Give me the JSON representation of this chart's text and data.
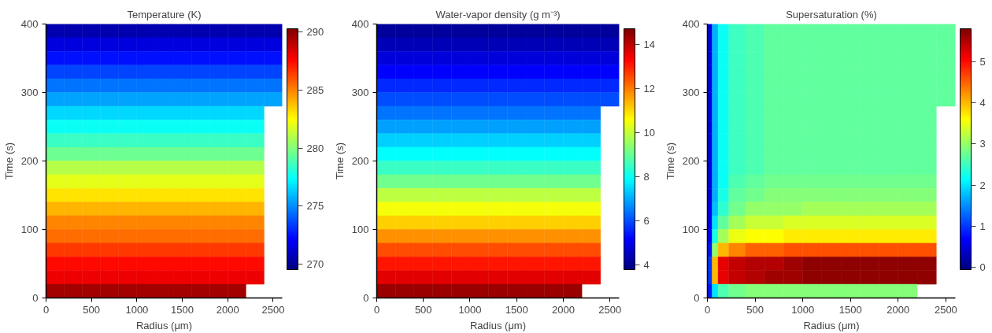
{
  "chart_data": [
    {
      "type": "heatmap",
      "title": "Temperature (K)",
      "xlabel": "Radius (μm)",
      "ylabel": "Time (s)",
      "xlim": [
        0,
        2600
      ],
      "xticks": [
        0,
        500,
        1000,
        1500,
        2000,
        2500
      ],
      "ylim": [
        0,
        400
      ],
      "yticks": [
        0,
        100,
        200,
        300,
        400
      ],
      "clim": [
        269.5,
        290.3
      ],
      "cticks": [
        270,
        275,
        280,
        285,
        290
      ],
      "grid": false,
      "x": [
        100,
        300,
        500,
        700,
        900,
        1100,
        1300,
        1500,
        1700,
        1900,
        2100,
        2300,
        2500
      ],
      "cells": [
        [
          270.5,
          270.5,
          270.5,
          270.5,
          270.5,
          270.5,
          270.5,
          270.5,
          270.5,
          270.5,
          270.5,
          270.5,
          270.5
        ],
        [
          271.5,
          271.5,
          271.5,
          271.5,
          271.5,
          271.5,
          271.5,
          271.5,
          271.5,
          271.5,
          271.5,
          271.5,
          271.5
        ],
        [
          272.5,
          272.5,
          272.5,
          272.5,
          272.5,
          272.5,
          272.5,
          272.5,
          272.5,
          272.5,
          272.5,
          272.5,
          272.5
        ],
        [
          273.5,
          273.5,
          273.5,
          273.5,
          273.5,
          273.5,
          273.5,
          273.5,
          273.5,
          273.5,
          273.5,
          273.5,
          273.5
        ],
        [
          274.5,
          274.5,
          274.5,
          274.5,
          274.5,
          274.5,
          274.5,
          274.5,
          274.5,
          274.5,
          274.5,
          274.5,
          274.5
        ],
        [
          275.5,
          275.5,
          275.5,
          275.5,
          275.5,
          275.5,
          275.5,
          275.5,
          275.5,
          275.5,
          275.5,
          275.5,
          275.5
        ],
        [
          276.5,
          276.5,
          276.5,
          276.5,
          276.5,
          276.5,
          276.5,
          276.5,
          276.5,
          276.5,
          276.5,
          276.5,
          null
        ],
        [
          277.5,
          277.5,
          277.5,
          277.5,
          277.5,
          277.5,
          277.5,
          277.5,
          277.5,
          277.5,
          277.5,
          277.5,
          null
        ],
        [
          278.5,
          278.5,
          278.5,
          278.5,
          278.5,
          278.5,
          278.5,
          278.5,
          278.5,
          278.5,
          278.5,
          278.5,
          null
        ],
        [
          279.5,
          279.5,
          279.5,
          279.5,
          279.5,
          279.5,
          279.5,
          279.5,
          279.5,
          279.5,
          279.5,
          279.5,
          null
        ],
        [
          281,
          281,
          281,
          281,
          281,
          281,
          281,
          281,
          281,
          281,
          281,
          281,
          null
        ],
        [
          282,
          282,
          282,
          282,
          282,
          282,
          282,
          282,
          282,
          282,
          282,
          282,
          null
        ],
        [
          283,
          283,
          283,
          283,
          283,
          283,
          283,
          283,
          283,
          283,
          283,
          283,
          null
        ],
        [
          284,
          284,
          284,
          284,
          284,
          284,
          284,
          284,
          284,
          284,
          284,
          284,
          null
        ],
        [
          285,
          285,
          285,
          285,
          285,
          285,
          285,
          285,
          285,
          285,
          285,
          285,
          null
        ],
        [
          285.5,
          285.5,
          285.5,
          285.5,
          285.5,
          285.5,
          285.5,
          285.5,
          285.5,
          285.5,
          285.5,
          285.5,
          null
        ],
        [
          286.5,
          286.5,
          286.5,
          286.5,
          286.5,
          286.5,
          286.5,
          286.5,
          286.5,
          286.5,
          286.5,
          286.5,
          null
        ],
        [
          287.5,
          287.5,
          287.5,
          287.5,
          287.5,
          287.5,
          287.5,
          287.5,
          287.5,
          287.5,
          287.5,
          287.5,
          null
        ],
        [
          288,
          288,
          288,
          288,
          288,
          288,
          288,
          288,
          288,
          288,
          288,
          288,
          null
        ],
        [
          289.5,
          289.5,
          289.5,
          289.5,
          289.5,
          289.5,
          289.5,
          289.5,
          289.5,
          289.5,
          289.5,
          null,
          null
        ]
      ]
    },
    {
      "type": "heatmap",
      "title": "Water-vapor density (g m⁻³)",
      "xlabel": "Radius (μm)",
      "ylabel": "Time (s)",
      "xlim": [
        0,
        2600
      ],
      "xticks": [
        0,
        500,
        1000,
        1500,
        2000,
        2500
      ],
      "ylim": [
        0,
        400
      ],
      "yticks": [
        0,
        100,
        200,
        300,
        400
      ],
      "clim": [
        3.8,
        14.7
      ],
      "cticks": [
        4,
        6,
        8,
        10,
        12,
        14
      ],
      "grid": false,
      "x": [
        100,
        300,
        500,
        700,
        900,
        1100,
        1300,
        1500,
        1700,
        1900,
        2100,
        2300,
        2500
      ],
      "cells": [
        [
          4.1,
          4.1,
          4.1,
          4.1,
          4.1,
          4.1,
          4.1,
          4.1,
          4.1,
          4.1,
          4.1,
          4.1,
          4.1
        ],
        [
          4.4,
          4.4,
          4.4,
          4.4,
          4.4,
          4.4,
          4.4,
          4.4,
          4.4,
          4.4,
          4.4,
          4.4,
          4.4
        ],
        [
          4.8,
          4.8,
          4.8,
          4.8,
          4.8,
          4.8,
          4.8,
          4.8,
          4.8,
          4.8,
          4.8,
          4.8,
          4.8
        ],
        [
          5.2,
          5.2,
          5.2,
          5.2,
          5.2,
          5.2,
          5.2,
          5.2,
          5.2,
          5.2,
          5.2,
          5.2,
          5.2
        ],
        [
          5.6,
          5.6,
          5.6,
          5.6,
          5.6,
          5.6,
          5.6,
          5.6,
          5.6,
          5.6,
          5.6,
          5.6,
          5.6
        ],
        [
          6.0,
          6.0,
          6.0,
          6.0,
          6.0,
          6.0,
          6.0,
          6.0,
          6.0,
          6.0,
          6.0,
          6.0,
          6.0
        ],
        [
          6.4,
          6.4,
          6.4,
          6.4,
          6.4,
          6.4,
          6.4,
          6.4,
          6.4,
          6.4,
          6.4,
          6.4,
          null
        ],
        [
          6.9,
          6.9,
          6.9,
          6.9,
          6.9,
          6.9,
          6.9,
          6.9,
          6.9,
          6.9,
          6.9,
          6.9,
          null
        ],
        [
          7.4,
          7.4,
          7.4,
          7.4,
          7.4,
          7.4,
          7.4,
          7.4,
          7.4,
          7.4,
          7.4,
          7.4,
          null
        ],
        [
          7.9,
          7.9,
          7.9,
          7.9,
          7.9,
          7.9,
          7.9,
          7.9,
          7.9,
          7.9,
          7.9,
          7.9,
          null
        ],
        [
          8.5,
          8.5,
          8.5,
          8.5,
          8.5,
          8.5,
          8.5,
          8.5,
          8.5,
          8.5,
          8.5,
          8.5,
          null
        ],
        [
          9.1,
          9.1,
          9.1,
          9.1,
          9.1,
          9.1,
          9.1,
          9.1,
          9.1,
          9.1,
          9.1,
          9.1,
          null
        ],
        [
          9.9,
          9.9,
          9.9,
          9.9,
          9.9,
          9.9,
          9.9,
          9.9,
          9.9,
          9.9,
          9.9,
          9.9,
          null
        ],
        [
          10.5,
          10.5,
          10.5,
          10.5,
          10.5,
          10.5,
          10.5,
          10.5,
          10.5,
          10.5,
          10.5,
          10.5,
          null
        ],
        [
          11.1,
          11.1,
          11.1,
          11.1,
          11.1,
          11.1,
          11.1,
          11.1,
          11.1,
          11.1,
          11.1,
          11.1,
          null
        ],
        [
          11.8,
          11.8,
          11.8,
          11.8,
          11.8,
          11.8,
          11.8,
          11.8,
          11.8,
          11.8,
          11.8,
          11.8,
          null
        ],
        [
          12.5,
          12.5,
          12.5,
          12.5,
          12.5,
          12.5,
          12.5,
          12.5,
          12.5,
          12.5,
          12.5,
          12.5,
          null
        ],
        [
          13.1,
          13.1,
          13.1,
          13.1,
          13.1,
          13.1,
          13.1,
          13.1,
          13.1,
          13.1,
          13.1,
          13.1,
          null
        ],
        [
          13.6,
          13.6,
          13.6,
          13.6,
          13.6,
          13.6,
          13.6,
          13.6,
          13.6,
          13.6,
          13.6,
          13.6,
          null
        ],
        [
          14.4,
          14.4,
          14.4,
          14.4,
          14.4,
          14.4,
          14.4,
          14.4,
          14.4,
          14.4,
          14.4,
          null,
          null
        ]
      ]
    },
    {
      "type": "heatmap",
      "title": "Supersaturation (%)",
      "xlabel": "Radius (μm)",
      "ylabel": "Time (s)",
      "xlim": [
        0,
        2600
      ],
      "xticks": [
        0,
        500,
        1000,
        1500,
        2000,
        2500
      ],
      "ylim": [
        0,
        400
      ],
      "yticks": [
        0,
        100,
        200,
        300,
        400
      ],
      "clim": [
        -0.05,
        5.8
      ],
      "cticks": [
        0,
        1,
        2,
        3,
        4,
        5
      ],
      "grid": false,
      "x": [
        25,
        75,
        150,
        300,
        500,
        700,
        900,
        1100,
        1300,
        1500,
        1700,
        1900,
        2100,
        2300,
        2500
      ],
      "cells": [
        [
          0.5,
          1.7,
          2.2,
          2.5,
          2.6,
          2.7,
          2.7,
          2.7,
          2.7,
          2.7,
          2.7,
          2.7,
          2.7,
          2.7,
          2.7
        ],
        [
          0.5,
          1.7,
          2.2,
          2.5,
          2.6,
          2.7,
          2.7,
          2.7,
          2.7,
          2.7,
          2.7,
          2.7,
          2.7,
          2.7,
          2.7
        ],
        [
          0.5,
          1.7,
          2.2,
          2.5,
          2.6,
          2.7,
          2.7,
          2.7,
          2.7,
          2.7,
          2.7,
          2.7,
          2.7,
          2.7,
          2.7
        ],
        [
          0.5,
          1.7,
          2.2,
          2.5,
          2.6,
          2.7,
          2.7,
          2.7,
          2.7,
          2.7,
          2.7,
          2.7,
          2.7,
          2.7,
          2.7
        ],
        [
          0.5,
          1.7,
          2.2,
          2.5,
          2.6,
          2.7,
          2.7,
          2.7,
          2.7,
          2.7,
          2.7,
          2.7,
          2.7,
          2.7,
          2.7
        ],
        [
          0.5,
          1.7,
          2.2,
          2.5,
          2.6,
          2.7,
          2.7,
          2.7,
          2.7,
          2.7,
          2.7,
          2.7,
          2.7,
          2.7,
          2.7
        ],
        [
          0.5,
          1.7,
          2.2,
          2.5,
          2.6,
          2.7,
          2.7,
          2.7,
          2.7,
          2.7,
          2.7,
          2.7,
          2.7,
          2.7,
          null
        ],
        [
          0.5,
          1.7,
          2.2,
          2.5,
          2.6,
          2.7,
          2.7,
          2.7,
          2.7,
          2.7,
          2.7,
          2.7,
          2.7,
          2.7,
          null
        ],
        [
          0.5,
          1.7,
          2.2,
          2.5,
          2.6,
          2.7,
          2.7,
          2.7,
          2.7,
          2.7,
          2.7,
          2.7,
          2.7,
          2.7,
          null
        ],
        [
          0.5,
          1.7,
          2.2,
          2.5,
          2.6,
          2.7,
          2.7,
          2.7,
          2.7,
          2.7,
          2.7,
          2.7,
          2.7,
          2.7,
          null
        ],
        [
          0.5,
          1.7,
          2.2,
          2.5,
          2.6,
          2.7,
          2.7,
          2.7,
          2.7,
          2.7,
          2.7,
          2.7,
          2.7,
          2.7,
          null
        ],
        [
          0.5,
          1.7,
          2.2,
          2.6,
          2.7,
          2.8,
          2.8,
          2.8,
          2.8,
          2.8,
          2.8,
          2.8,
          2.8,
          2.8,
          null
        ],
        [
          0.5,
          1.7,
          2.3,
          2.7,
          2.8,
          2.9,
          2.9,
          2.9,
          2.9,
          2.9,
          2.9,
          2.9,
          2.9,
          2.9,
          null
        ],
        [
          0.6,
          1.8,
          2.4,
          2.8,
          3.0,
          3.0,
          3.0,
          3.1,
          3.1,
          3.1,
          3.1,
          3.1,
          3.1,
          3.1,
          null
        ],
        [
          0.6,
          2.0,
          2.7,
          3.1,
          3.3,
          3.3,
          3.4,
          3.4,
          3.4,
          3.4,
          3.4,
          3.4,
          3.4,
          3.4,
          null
        ],
        [
          0.7,
          2.3,
          3.1,
          3.5,
          3.6,
          3.6,
          3.7,
          3.7,
          3.7,
          3.7,
          3.7,
          3.7,
          3.7,
          3.7,
          null
        ],
        [
          0.8,
          3.0,
          4.0,
          4.3,
          4.5,
          4.5,
          4.6,
          4.6,
          4.6,
          4.6,
          4.6,
          4.6,
          4.6,
          4.6,
          null
        ],
        [
          1.0,
          4.0,
          5.2,
          5.4,
          5.5,
          5.5,
          5.6,
          5.7,
          5.7,
          5.7,
          5.7,
          5.7,
          5.7,
          5.7,
          null
        ],
        [
          1.0,
          4.0,
          5.2,
          5.4,
          5.5,
          5.6,
          5.6,
          5.7,
          5.7,
          5.7,
          5.7,
          5.7,
          5.7,
          5.7,
          null
        ],
        [
          0.8,
          2.0,
          2.6,
          2.8,
          2.9,
          2.9,
          2.9,
          2.9,
          2.9,
          2.9,
          2.9,
          2.9,
          2.9,
          null,
          null
        ]
      ]
    }
  ]
}
